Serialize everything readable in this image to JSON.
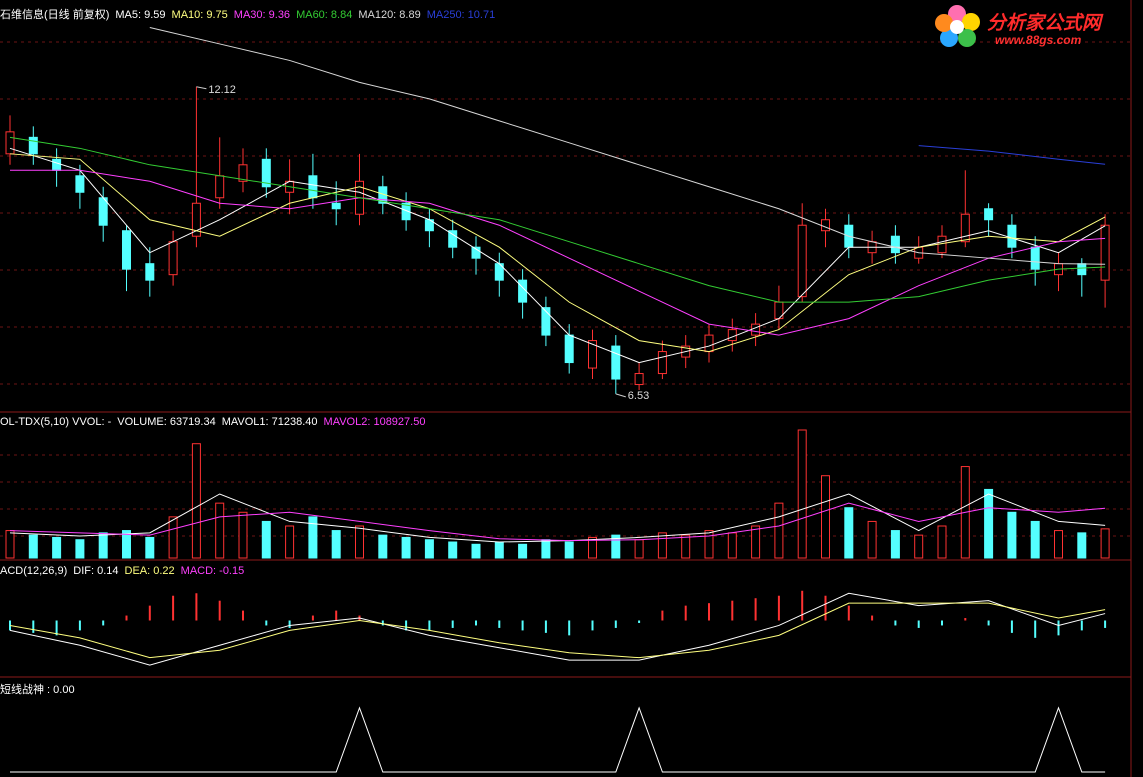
{
  "chart_data": [
    {
      "type": "candlestick",
      "title": "石维信息(日线 前复权)",
      "up_color": "#ff3232",
      "down_color": "#54ffff",
      "ylim": [
        6.2,
        13.7
      ],
      "open": [
        10.9,
        11.2,
        10.8,
        10.5,
        10.1,
        9.5,
        8.9,
        8.7,
        9.4,
        10.1,
        10.4,
        10.8,
        10.2,
        10.5,
        10.0,
        9.8,
        10.3,
        10.0,
        9.7,
        9.5,
        9.2,
        8.9,
        8.6,
        8.1,
        7.6,
        7.0,
        7.4,
        6.7,
        6.9,
        7.2,
        7.3,
        7.5,
        7.6,
        7.9,
        8.3,
        9.5,
        9.6,
        9.1,
        9.4,
        9.0,
        9.1,
        9.3,
        9.9,
        9.6,
        9.2,
        8.7,
        8.9,
        8.6
      ],
      "high": [
        11.6,
        11.4,
        11.0,
        10.7,
        10.3,
        9.6,
        9.2,
        9.5,
        12.12,
        11.2,
        11.0,
        11.0,
        10.8,
        10.9,
        10.4,
        10.9,
        10.5,
        10.2,
        9.9,
        9.7,
        9.4,
        9.1,
        8.8,
        8.3,
        7.8,
        7.7,
        7.6,
        7.1,
        7.5,
        7.6,
        7.8,
        7.9,
        8.0,
        8.5,
        10.0,
        9.9,
        9.8,
        9.5,
        9.6,
        9.4,
        9.6,
        10.6,
        10.0,
        9.8,
        9.4,
        9.1,
        9.0,
        9.8
      ],
      "low": [
        10.7,
        10.7,
        10.3,
        9.9,
        9.3,
        8.4,
        8.3,
        8.5,
        9.2,
        9.9,
        10.2,
        10.1,
        9.8,
        9.9,
        9.6,
        9.6,
        9.8,
        9.5,
        9.2,
        9.0,
        8.7,
        8.3,
        7.9,
        7.4,
        6.9,
        6.8,
        6.53,
        6.6,
        6.8,
        7.0,
        7.1,
        7.3,
        7.4,
        7.7,
        8.2,
        9.2,
        9.0,
        8.9,
        8.9,
        8.9,
        9.0,
        9.2,
        9.4,
        9.0,
        8.5,
        8.4,
        8.3,
        8.1
      ],
      "close": [
        11.3,
        10.9,
        10.6,
        10.2,
        9.6,
        8.8,
        8.6,
        9.3,
        10.0,
        10.5,
        10.7,
        10.3,
        10.4,
        10.1,
        9.9,
        10.4,
        10.0,
        9.7,
        9.5,
        9.2,
        9.0,
        8.6,
        8.2,
        7.6,
        7.1,
        7.5,
        6.8,
        6.9,
        7.3,
        7.4,
        7.6,
        7.7,
        7.8,
        8.2,
        9.6,
        9.7,
        9.2,
        9.3,
        9.1,
        9.2,
        9.4,
        9.8,
        9.7,
        9.2,
        8.8,
        8.9,
        8.7,
        9.6
      ],
      "line_x": [
        0,
        3,
        6,
        9,
        12,
        15,
        18,
        21,
        24,
        27,
        30,
        33,
        36,
        39,
        42,
        45,
        47
      ],
      "series": [
        {
          "name": "MA5: 9.59",
          "color": "#ffffff",
          "values": [
            11.0,
            10.6,
            9.1,
            9.7,
            10.4,
            10.2,
            9.7,
            8.9,
            7.6,
            7.1,
            7.4,
            7.9,
            9.2,
            9.2,
            9.5,
            9.1,
            9.59
          ]
        },
        {
          "name": "MA10: 9.75",
          "color": "#ffff80",
          "values": [
            10.9,
            10.8,
            9.7,
            9.4,
            10.0,
            10.3,
            9.9,
            9.2,
            8.2,
            7.5,
            7.3,
            7.7,
            8.7,
            9.2,
            9.4,
            9.3,
            9.75
          ]
        },
        {
          "name": "MA30: 9.36",
          "color": "#ff40ff",
          "values": [
            10.6,
            10.6,
            10.4,
            10.0,
            9.9,
            10.1,
            10.0,
            9.6,
            9.0,
            8.4,
            7.8,
            7.6,
            7.9,
            8.5,
            9.0,
            9.3,
            9.36
          ]
        },
        {
          "name": "MA60: 8.84",
          "color": "#33cc33",
          "values": [
            11.2,
            11.0,
            10.7,
            10.5,
            10.3,
            10.1,
            9.9,
            9.7,
            9.3,
            8.9,
            8.5,
            8.2,
            8.2,
            8.3,
            8.6,
            8.8,
            8.84
          ]
        },
        {
          "name": "MA120: 8.89",
          "color": "#d8d8d8",
          "values": [
            null,
            null,
            13.2,
            12.9,
            12.6,
            12.2,
            11.9,
            11.5,
            11.1,
            10.7,
            10.3,
            9.9,
            9.4,
            9.1,
            9.0,
            8.9,
            8.89
          ]
        },
        {
          "name": "MA250: 10.71",
          "color": "#2a3fd8",
          "values": [
            null,
            null,
            null,
            null,
            null,
            null,
            null,
            null,
            null,
            null,
            null,
            null,
            null,
            11.05,
            10.95,
            10.8,
            10.71
          ]
        }
      ],
      "annotations": [
        {
          "index": 8,
          "value": 12.12
        },
        {
          "index": 26,
          "value": 6.53
        }
      ]
    },
    {
      "type": "volume",
      "title": "OL-TDX(5,10) VVOL: -",
      "ylim": [
        0,
        280000
      ],
      "bars": {
        "name": "VOLUME: 63719.34",
        "values": [
          60000,
          50000,
          45000,
          40000,
          55000,
          60000,
          45000,
          90000,
          250000,
          120000,
          100000,
          80000,
          70000,
          90000,
          60000,
          70000,
          50000,
          45000,
          40000,
          35000,
          30000,
          35000,
          30000,
          40000,
          35000,
          45000,
          50000,
          40000,
          55000,
          50000,
          60000,
          55000,
          70000,
          120000,
          280000,
          180000,
          110000,
          80000,
          60000,
          50000,
          70000,
          200000,
          150000,
          100000,
          80000,
          60000,
          55000,
          63719.34
        ]
      },
      "line_x": [
        0,
        3,
        6,
        9,
        12,
        15,
        18,
        21,
        24,
        27,
        30,
        33,
        36,
        39,
        42,
        45,
        47
      ],
      "series": [
        {
          "name": "MAVOL1: 71238.40",
          "color": "#ffffff",
          "values": [
            55000,
            48000,
            55000,
            140000,
            80000,
            65000,
            45000,
            35000,
            38000,
            45000,
            55000,
            90000,
            140000,
            60000,
            140000,
            80000,
            71238.4
          ]
        },
        {
          "name": "MAVOL2: 108927.50",
          "color": "#ff40ff",
          "values": [
            60000,
            55000,
            50000,
            90000,
            100000,
            80000,
            60000,
            42000,
            38000,
            40000,
            48000,
            70000,
            120000,
            80000,
            110000,
            100000,
            108927.5
          ]
        }
      ]
    },
    {
      "type": "macd",
      "title": "ACD(12,26,9)",
      "ylim": [
        -1.1,
        1.1
      ],
      "line_x": [
        0,
        3,
        6,
        9,
        12,
        15,
        18,
        21,
        24,
        27,
        30,
        33,
        36,
        39,
        42,
        45,
        47
      ],
      "series": [
        {
          "name": "DIF: 0.14",
          "color": "#ffffff",
          "values": [
            -0.2,
            -0.5,
            -0.9,
            -0.5,
            -0.1,
            0.05,
            -0.3,
            -0.55,
            -0.8,
            -0.8,
            -0.5,
            -0.1,
            0.55,
            0.3,
            0.4,
            -0.1,
            0.14
          ]
        },
        {
          "name": "DEA: 0.22",
          "color": "#ffff80",
          "values": [
            -0.1,
            -0.35,
            -0.75,
            -0.6,
            -0.2,
            0.0,
            -0.2,
            -0.45,
            -0.65,
            -0.75,
            -0.6,
            -0.3,
            0.35,
            0.35,
            0.35,
            0.05,
            0.22
          ]
        }
      ],
      "bars": {
        "name": "MACD: -0.15",
        "color": "#ff40ff",
        "values": [
          -0.2,
          -0.25,
          -0.3,
          -0.2,
          -0.1,
          0.1,
          0.3,
          0.5,
          0.55,
          0.4,
          0.2,
          -0.1,
          -0.15,
          0.1,
          0.2,
          0.1,
          -0.1,
          -0.2,
          -0.2,
          -0.15,
          -0.1,
          -0.15,
          -0.2,
          -0.25,
          -0.3,
          -0.2,
          -0.15,
          -0.05,
          0.2,
          0.3,
          0.35,
          0.4,
          0.45,
          0.5,
          0.6,
          0.5,
          0.3,
          0.1,
          -0.1,
          -0.15,
          -0.1,
          0.05,
          -0.1,
          -0.25,
          -0.35,
          -0.3,
          -0.2,
          -0.15
        ]
      }
    },
    {
      "type": "signal",
      "title": "短线战神 : 0.00",
      "ylim": [
        0,
        1.2
      ],
      "color": "#ffffff",
      "values": [
        0,
        0,
        0,
        0,
        0,
        0,
        0,
        0,
        0,
        0,
        0,
        0,
        0,
        0,
        0,
        1,
        0,
        0,
        0,
        0,
        0,
        0,
        0,
        0,
        0,
        0,
        0,
        1,
        0,
        0,
        0,
        0,
        0,
        0,
        0,
        0,
        0,
        0,
        0,
        0,
        0,
        0,
        0,
        0,
        0,
        1,
        0,
        0
      ]
    }
  ],
  "logo": {
    "name": "分析家公式网",
    "url": "www.88gs.com"
  }
}
